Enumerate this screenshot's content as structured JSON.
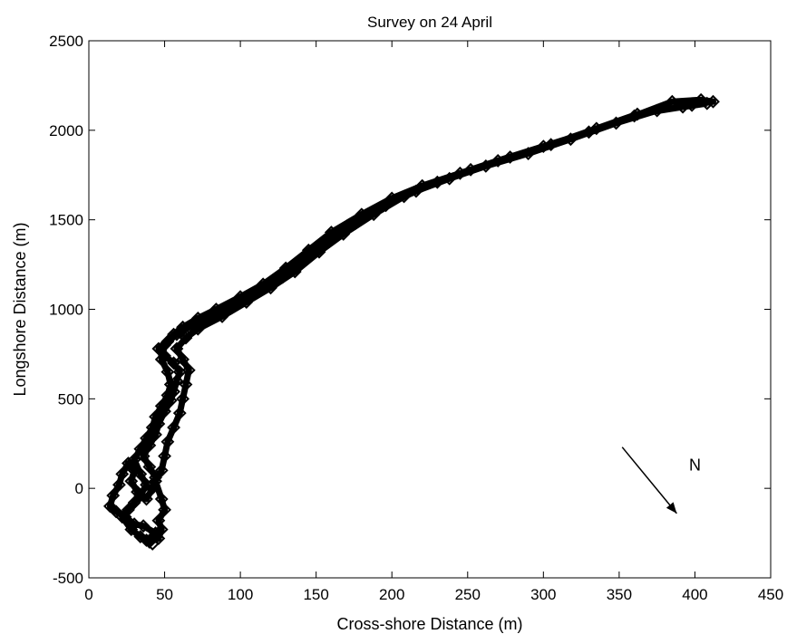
{
  "chart_data": {
    "type": "scatter",
    "title": "Survey on 24 April",
    "xlabel": "Cross-shore Distance (m)",
    "ylabel": "Longshore Distance (m)",
    "xlim": [
      0,
      450
    ],
    "ylim": [
      -500,
      2500
    ],
    "xticks": [
      0,
      50,
      100,
      150,
      200,
      250,
      300,
      350,
      400,
      450
    ],
    "yticks": [
      -500,
      0,
      500,
      1000,
      1500,
      2000,
      2500
    ],
    "xtick_labels": [
      "0",
      "50",
      "100",
      "150",
      "200",
      "250",
      "300",
      "350",
      "400",
      "450"
    ],
    "ytick_labels": [
      "-500",
      "0",
      "500",
      "1000",
      "1500",
      "2000",
      "2500"
    ],
    "grid": false,
    "legend": "none",
    "marker_color": "#000000",
    "series": [
      {
        "marker": "diamond",
        "points": [
          [
            42,
            -310
          ],
          [
            38,
            -290
          ],
          [
            44,
            -250
          ],
          [
            36,
            -210
          ],
          [
            30,
            -200
          ],
          [
            24,
            -160
          ],
          [
            18,
            -130
          ],
          [
            14,
            -100
          ],
          [
            16,
            -40
          ],
          [
            20,
            20
          ],
          [
            22,
            80
          ],
          [
            26,
            140
          ],
          [
            30,
            100
          ],
          [
            28,
            40
          ],
          [
            32,
            -20
          ],
          [
            38,
            -60
          ],
          [
            42,
            0
          ],
          [
            44,
            60
          ],
          [
            40,
            120
          ],
          [
            36,
            180
          ],
          [
            40,
            240
          ],
          [
            44,
            300
          ],
          [
            46,
            360
          ],
          [
            50,
            430
          ],
          [
            54,
            490
          ],
          [
            56,
            540
          ],
          [
            58,
            600
          ],
          [
            60,
            650
          ],
          [
            56,
            700
          ],
          [
            50,
            740
          ],
          [
            46,
            780
          ],
          [
            52,
            820
          ],
          [
            58,
            860
          ],
          [
            66,
            900
          ],
          [
            78,
            950
          ],
          [
            95,
            1020
          ],
          [
            112,
            1100
          ],
          [
            128,
            1180
          ],
          [
            142,
            1280
          ],
          [
            158,
            1380
          ],
          [
            176,
            1480
          ],
          [
            196,
            1580
          ],
          [
            216,
            1660
          ],
          [
            238,
            1730
          ],
          [
            262,
            1800
          ],
          [
            290,
            1870
          ],
          [
            318,
            1950
          ],
          [
            348,
            2040
          ],
          [
            375,
            2110
          ],
          [
            398,
            2140
          ],
          [
            412,
            2160
          ],
          [
            404,
            2170
          ],
          [
            385,
            2160
          ],
          [
            360,
            2080
          ],
          [
            330,
            1990
          ],
          [
            300,
            1910
          ],
          [
            270,
            1830
          ],
          [
            245,
            1760
          ],
          [
            220,
            1690
          ],
          [
            200,
            1620
          ],
          [
            180,
            1530
          ],
          [
            160,
            1430
          ],
          [
            145,
            1330
          ],
          [
            130,
            1230
          ],
          [
            115,
            1140
          ],
          [
            100,
            1070
          ],
          [
            84,
            1000
          ],
          [
            72,
            950
          ],
          [
            62,
            900
          ],
          [
            56,
            860
          ],
          [
            50,
            800
          ],
          [
            48,
            720
          ],
          [
            52,
            650
          ],
          [
            54,
            580
          ],
          [
            52,
            520
          ],
          [
            48,
            460
          ],
          [
            44,
            400
          ],
          [
            42,
            340
          ],
          [
            38,
            280
          ],
          [
            34,
            220
          ],
          [
            30,
            160
          ],
          [
            34,
            80
          ],
          [
            38,
            20
          ],
          [
            34,
            -40
          ],
          [
            30,
            -80
          ],
          [
            26,
            -120
          ],
          [
            22,
            -160
          ],
          [
            28,
            -230
          ],
          [
            34,
            -270
          ],
          [
            40,
            -300
          ],
          [
            46,
            -280
          ],
          [
            48,
            -230
          ],
          [
            46,
            -180
          ],
          [
            50,
            -120
          ],
          [
            48,
            -60
          ],
          [
            44,
            40
          ],
          [
            48,
            100
          ],
          [
            50,
            180
          ],
          [
            52,
            260
          ],
          [
            56,
            340
          ],
          [
            60,
            420
          ],
          [
            62,
            500
          ],
          [
            64,
            580
          ],
          [
            66,
            660
          ],
          [
            62,
            720
          ],
          [
            58,
            780
          ],
          [
            64,
            840
          ],
          [
            72,
            890
          ],
          [
            88,
            960
          ],
          [
            104,
            1040
          ],
          [
            120,
            1120
          ],
          [
            136,
            1210
          ],
          [
            152,
            1320
          ],
          [
            168,
            1420
          ],
          [
            188,
            1530
          ],
          [
            208,
            1630
          ],
          [
            230,
            1710
          ],
          [
            252,
            1780
          ],
          [
            278,
            1850
          ],
          [
            305,
            1920
          ],
          [
            335,
            2010
          ],
          [
            362,
            2090
          ],
          [
            392,
            2130
          ],
          [
            408,
            2150
          ]
        ]
      }
    ],
    "annotations": [
      {
        "text": "N",
        "x": 400,
        "y": 100
      }
    ],
    "arrow": {
      "from": [
        352,
        230
      ],
      "to": [
        388,
        -140
      ]
    }
  }
}
